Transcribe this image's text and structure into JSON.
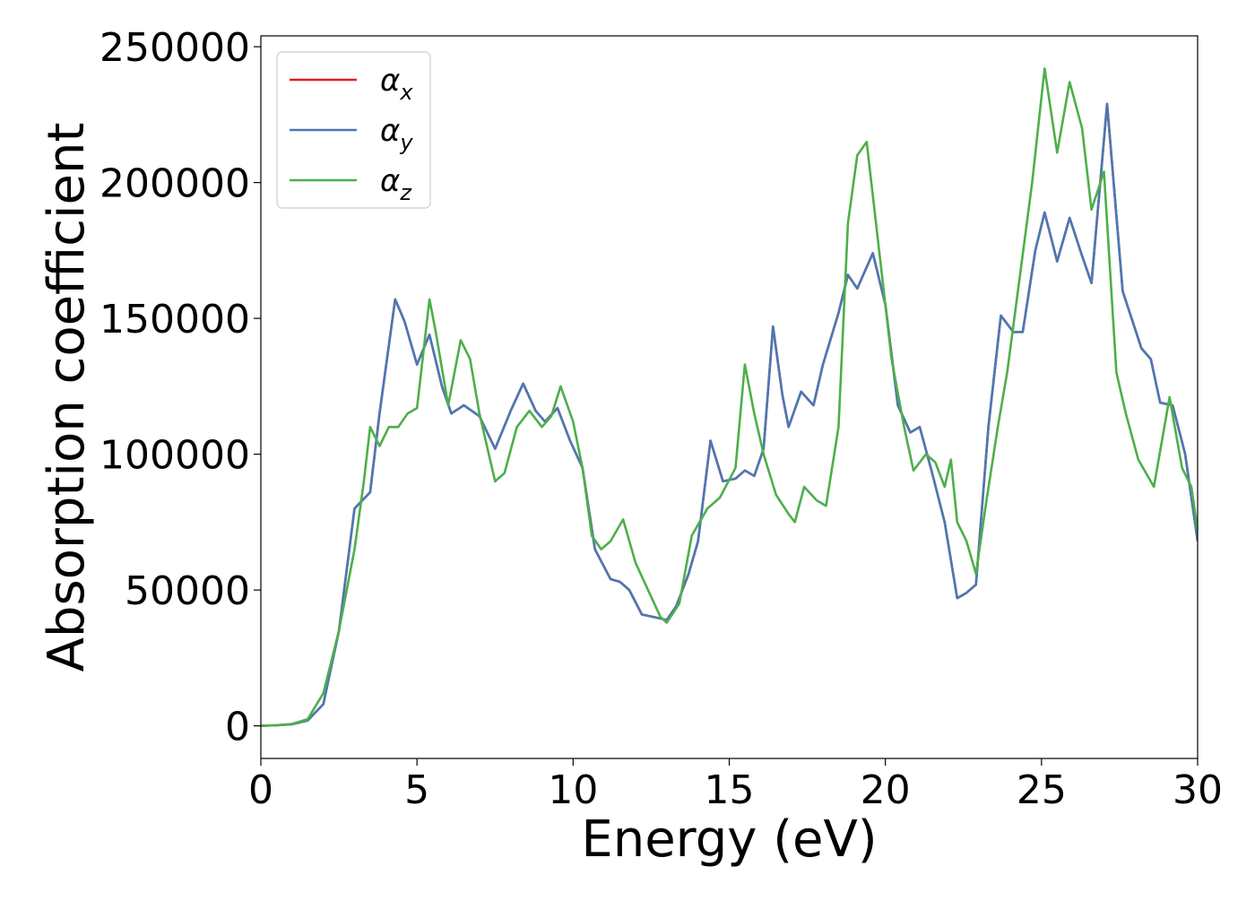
{
  "chart_data": {
    "type": "line",
    "xlabel": "Energy (eV)",
    "ylabel": "Absorption coefficient",
    "xlim": [
      0,
      30
    ],
    "ylim": [
      -12000,
      254000
    ],
    "xticks": [
      0,
      5,
      10,
      15,
      20,
      25,
      30
    ],
    "yticks": [
      0,
      50000,
      100000,
      150000,
      200000,
      250000
    ],
    "grid": false,
    "legend_position": "top-left",
    "series": [
      {
        "name": "αx",
        "legend_symbol": "α",
        "legend_sub": "x",
        "color": "#e41a1c",
        "points": [
          [
            0,
            0
          ],
          [
            0.5,
            200
          ],
          [
            1,
            600
          ],
          [
            1.5,
            2000
          ],
          [
            2,
            8000
          ],
          [
            2.5,
            35000
          ],
          [
            3,
            80000
          ],
          [
            3.5,
            86000
          ],
          [
            3.8,
            115000
          ],
          [
            4.3,
            157000
          ],
          [
            4.6,
            149000
          ],
          [
            5,
            133000
          ],
          [
            5.4,
            144000
          ],
          [
            5.8,
            125000
          ],
          [
            6.1,
            115000
          ],
          [
            6.5,
            118000
          ],
          [
            7,
            114000
          ],
          [
            7.5,
            102000
          ],
          [
            8,
            116000
          ],
          [
            8.4,
            126000
          ],
          [
            8.8,
            116000
          ],
          [
            9.1,
            112000
          ],
          [
            9.5,
            117000
          ],
          [
            9.9,
            105000
          ],
          [
            10.3,
            95000
          ],
          [
            10.7,
            65000
          ],
          [
            11.2,
            54000
          ],
          [
            11.5,
            53000
          ],
          [
            11.8,
            50000
          ],
          [
            12.2,
            41000
          ],
          [
            12.6,
            40000
          ],
          [
            13,
            39000
          ],
          [
            13.3,
            44000
          ],
          [
            13.7,
            56000
          ],
          [
            14,
            68000
          ],
          [
            14.4,
            105000
          ],
          [
            14.8,
            90000
          ],
          [
            15.2,
            91000
          ],
          [
            15.5,
            94000
          ],
          [
            15.8,
            92000
          ],
          [
            16.1,
            102000
          ],
          [
            16.4,
            147000
          ],
          [
            16.7,
            122000
          ],
          [
            16.9,
            110000
          ],
          [
            17.3,
            123000
          ],
          [
            17.7,
            118000
          ],
          [
            18,
            133000
          ],
          [
            18.5,
            152000
          ],
          [
            18.8,
            166000
          ],
          [
            19.1,
            161000
          ],
          [
            19.6,
            174000
          ],
          [
            20,
            155000
          ],
          [
            20.4,
            118000
          ],
          [
            20.8,
            108000
          ],
          [
            21.1,
            110000
          ],
          [
            21.5,
            93000
          ],
          [
            21.9,
            75000
          ],
          [
            22.3,
            47000
          ],
          [
            22.6,
            49000
          ],
          [
            22.9,
            52000
          ],
          [
            23.3,
            110000
          ],
          [
            23.7,
            151000
          ],
          [
            24.1,
            145000
          ],
          [
            24.4,
            145000
          ],
          [
            24.8,
            175000
          ],
          [
            25.1,
            189000
          ],
          [
            25.5,
            171000
          ],
          [
            25.9,
            187000
          ],
          [
            26.3,
            173000
          ],
          [
            26.6,
            163000
          ],
          [
            27.1,
            229000
          ],
          [
            27.6,
            160000
          ],
          [
            28.2,
            139000
          ],
          [
            28.5,
            135000
          ],
          [
            28.8,
            119000
          ],
          [
            29.2,
            118000
          ],
          [
            29.6,
            100000
          ],
          [
            30,
            68000
          ]
        ]
      },
      {
        "name": "αy",
        "legend_symbol": "α",
        "legend_sub": "y",
        "color": "#4a79b4",
        "points": [
          [
            0,
            0
          ],
          [
            0.5,
            200
          ],
          [
            1,
            600
          ],
          [
            1.5,
            2000
          ],
          [
            2,
            8000
          ],
          [
            2.5,
            35000
          ],
          [
            3,
            80000
          ],
          [
            3.5,
            86000
          ],
          [
            3.8,
            115000
          ],
          [
            4.3,
            157000
          ],
          [
            4.6,
            149000
          ],
          [
            5,
            133000
          ],
          [
            5.4,
            144000
          ],
          [
            5.8,
            125000
          ],
          [
            6.1,
            115000
          ],
          [
            6.5,
            118000
          ],
          [
            7,
            114000
          ],
          [
            7.5,
            102000
          ],
          [
            8,
            116000
          ],
          [
            8.4,
            126000
          ],
          [
            8.8,
            116000
          ],
          [
            9.1,
            112000
          ],
          [
            9.5,
            117000
          ],
          [
            9.9,
            105000
          ],
          [
            10.3,
            95000
          ],
          [
            10.7,
            65000
          ],
          [
            11.2,
            54000
          ],
          [
            11.5,
            53000
          ],
          [
            11.8,
            50000
          ],
          [
            12.2,
            41000
          ],
          [
            12.6,
            40000
          ],
          [
            13,
            39000
          ],
          [
            13.3,
            44000
          ],
          [
            13.7,
            56000
          ],
          [
            14,
            68000
          ],
          [
            14.4,
            105000
          ],
          [
            14.8,
            90000
          ],
          [
            15.2,
            91000
          ],
          [
            15.5,
            94000
          ],
          [
            15.8,
            92000
          ],
          [
            16.1,
            102000
          ],
          [
            16.4,
            147000
          ],
          [
            16.7,
            122000
          ],
          [
            16.9,
            110000
          ],
          [
            17.3,
            123000
          ],
          [
            17.7,
            118000
          ],
          [
            18,
            133000
          ],
          [
            18.5,
            152000
          ],
          [
            18.8,
            166000
          ],
          [
            19.1,
            161000
          ],
          [
            19.6,
            174000
          ],
          [
            20,
            155000
          ],
          [
            20.4,
            118000
          ],
          [
            20.8,
            108000
          ],
          [
            21.1,
            110000
          ],
          [
            21.5,
            93000
          ],
          [
            21.9,
            75000
          ],
          [
            22.3,
            47000
          ],
          [
            22.6,
            49000
          ],
          [
            22.9,
            52000
          ],
          [
            23.3,
            110000
          ],
          [
            23.7,
            151000
          ],
          [
            24.1,
            145000
          ],
          [
            24.4,
            145000
          ],
          [
            24.8,
            175000
          ],
          [
            25.1,
            189000
          ],
          [
            25.5,
            171000
          ],
          [
            25.9,
            187000
          ],
          [
            26.3,
            173000
          ],
          [
            26.6,
            163000
          ],
          [
            27.1,
            229000
          ],
          [
            27.6,
            160000
          ],
          [
            28.2,
            139000
          ],
          [
            28.5,
            135000
          ],
          [
            28.8,
            119000
          ],
          [
            29.2,
            118000
          ],
          [
            29.6,
            100000
          ],
          [
            30,
            68000
          ]
        ]
      },
      {
        "name": "αz",
        "legend_symbol": "α",
        "legend_sub": "z",
        "color": "#4daf4a",
        "points": [
          [
            0,
            0
          ],
          [
            0.5,
            200
          ],
          [
            1,
            700
          ],
          [
            1.5,
            2500
          ],
          [
            2,
            12000
          ],
          [
            2.5,
            35000
          ],
          [
            3,
            65000
          ],
          [
            3.3,
            90000
          ],
          [
            3.5,
            110000
          ],
          [
            3.8,
            103000
          ],
          [
            4.1,
            110000
          ],
          [
            4.4,
            110000
          ],
          [
            4.7,
            115000
          ],
          [
            5,
            117000
          ],
          [
            5.4,
            157000
          ],
          [
            5.6,
            145000
          ],
          [
            6,
            118000
          ],
          [
            6.4,
            142000
          ],
          [
            6.7,
            135000
          ],
          [
            7,
            115000
          ],
          [
            7.5,
            90000
          ],
          [
            7.8,
            93000
          ],
          [
            8.2,
            110000
          ],
          [
            8.6,
            116000
          ],
          [
            9,
            110000
          ],
          [
            9.3,
            114000
          ],
          [
            9.6,
            125000
          ],
          [
            10,
            112000
          ],
          [
            10.3,
            95000
          ],
          [
            10.6,
            70000
          ],
          [
            10.9,
            65000
          ],
          [
            11.2,
            68000
          ],
          [
            11.6,
            76000
          ],
          [
            12,
            60000
          ],
          [
            12.4,
            50000
          ],
          [
            12.8,
            40000
          ],
          [
            13,
            38000
          ],
          [
            13.4,
            45000
          ],
          [
            13.8,
            70000
          ],
          [
            14.3,
            80000
          ],
          [
            14.7,
            84000
          ],
          [
            15.2,
            95000
          ],
          [
            15.5,
            133000
          ],
          [
            15.8,
            115000
          ],
          [
            16.1,
            100000
          ],
          [
            16.5,
            85000
          ],
          [
            16.9,
            78000
          ],
          [
            17.1,
            75000
          ],
          [
            17.4,
            88000
          ],
          [
            17.8,
            83000
          ],
          [
            18.1,
            81000
          ],
          [
            18.5,
            110000
          ],
          [
            18.8,
            185000
          ],
          [
            19.1,
            210000
          ],
          [
            19.4,
            215000
          ],
          [
            19.8,
            175000
          ],
          [
            20.2,
            135000
          ],
          [
            20.6,
            110000
          ],
          [
            20.9,
            94000
          ],
          [
            21.3,
            100000
          ],
          [
            21.6,
            97000
          ],
          [
            21.9,
            88000
          ],
          [
            22.1,
            98000
          ],
          [
            22.3,
            75000
          ],
          [
            22.6,
            68000
          ],
          [
            22.9,
            56000
          ],
          [
            23.2,
            80000
          ],
          [
            23.6,
            110000
          ],
          [
            23.9,
            130000
          ],
          [
            24.3,
            165000
          ],
          [
            24.7,
            200000
          ],
          [
            25.1,
            242000
          ],
          [
            25.5,
            211000
          ],
          [
            25.9,
            237000
          ],
          [
            26.3,
            220000
          ],
          [
            26.6,
            190000
          ],
          [
            27,
            204000
          ],
          [
            27.4,
            130000
          ],
          [
            27.7,
            115000
          ],
          [
            28.1,
            98000
          ],
          [
            28.6,
            88000
          ],
          [
            29.1,
            121000
          ],
          [
            29.5,
            95000
          ],
          [
            29.8,
            88000
          ],
          [
            30,
            72000
          ]
        ]
      }
    ]
  }
}
